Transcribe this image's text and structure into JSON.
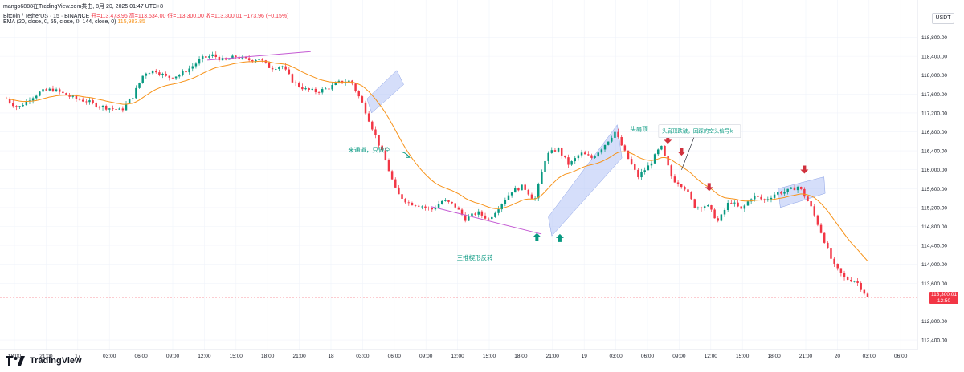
{
  "header": {
    "topline": "mango6888在TradingView.com共由, 8月 20, 2025 01:47 UTC+8",
    "symbol": "Bitcoin / TetherUS · 15 · BINANCE",
    "ohlc": "开=113,473.96  高=113,534.00  低=113,300.00  收=113,300.01  −173.96 (−0.15%)",
    "ema_label": "EMA (20, close, 0, 55, close, 0, 144, close, 0)",
    "ema_value": "115,983.85"
  },
  "currency_button": "USDT",
  "last_price": {
    "price": "113,300.01",
    "countdown": "12:50"
  },
  "brand": {
    "name": "TradingView"
  },
  "chart_data": {
    "type": "candlestick",
    "y_ticks": [
      "118,800.00",
      "118,400.00",
      "118,000.00",
      "117,600.00",
      "117,200.00",
      "116,800.00",
      "116,400.00",
      "116,000.00",
      "115,600.00",
      "115,200.00",
      "114,800.00",
      "114,400.00",
      "114,000.00",
      "113,600.00",
      "112,800.00",
      "112,400.00"
    ],
    "y_tick_values": [
      118800,
      118400,
      118000,
      117600,
      117200,
      116800,
      116400,
      116000,
      115600,
      115200,
      114800,
      114400,
      114000,
      113600,
      112800,
      112400
    ],
    "ylim": [
      112300,
      119080
    ],
    "x_ticks": [
      "18:00",
      "21:00",
      "17",
      "03:00",
      "06:00",
      "09:00",
      "12:00",
      "15:00",
      "18:00",
      "21:00",
      "18",
      "03:00",
      "06:00",
      "09:00",
      "12:00",
      "15:00",
      "18:00",
      "21:00",
      "19",
      "03:00",
      "06:00",
      "09:00",
      "12:00",
      "15:00",
      "18:00",
      "21:00",
      "20",
      "03:00",
      "06:00"
    ],
    "annotations": {
      "wedge_label": "三推楔形反转",
      "channel_label": "来通道，只做空",
      "hs_label": "头肩顶",
      "note_label": "头肩顶跌破，回踩的空头信号k"
    },
    "colors": {
      "up": "#089981",
      "down": "#f23645",
      "ema": "#f7931a",
      "wedge": "#c45ad3",
      "zone": "#b2c3f5",
      "marker_down": "#d0313d",
      "marker_up": "#089981"
    },
    "anchor_points": [
      [
        0,
        117500
      ],
      [
        1,
        117300
      ],
      [
        2,
        117500
      ],
      [
        3,
        117650
      ],
      [
        4,
        117700
      ],
      [
        5,
        117600
      ],
      [
        6,
        117500
      ],
      [
        7,
        117450
      ],
      [
        8,
        117350
      ],
      [
        9,
        117300
      ],
      [
        10,
        117250
      ],
      [
        11,
        117550
      ],
      [
        12,
        118050
      ],
      [
        13,
        118100
      ],
      [
        14,
        117950
      ],
      [
        15,
        118000
      ],
      [
        16,
        118150
      ],
      [
        17,
        118350
      ],
      [
        18,
        118420
      ],
      [
        19,
        118300
      ],
      [
        20,
        118400
      ],
      [
        21,
        118320
      ],
      [
        22,
        118350
      ],
      [
        23,
        118150
      ],
      [
        24,
        118200
      ],
      [
        25,
        117850
      ],
      [
        26,
        117700
      ],
      [
        27,
        117650
      ],
      [
        28,
        117720
      ],
      [
        29,
        117850
      ],
      [
        30,
        117880
      ],
      [
        31,
        117400
      ],
      [
        32,
        116800
      ],
      [
        33,
        116200
      ],
      [
        34,
        115500
      ],
      [
        35,
        115300
      ],
      [
        36,
        115250
      ],
      [
        37,
        115150
      ],
      [
        38,
        115350
      ],
      [
        39,
        115250
      ],
      [
        40,
        114950
      ],
      [
        41,
        115100
      ],
      [
        42,
        114950
      ],
      [
        43,
        115250
      ],
      [
        44,
        115550
      ],
      [
        45,
        115650
      ],
      [
        46,
        115350
      ],
      [
        47,
        116300
      ],
      [
        48,
        116450
      ],
      [
        49,
        116100
      ],
      [
        50,
        116350
      ],
      [
        51,
        116250
      ],
      [
        52,
        116500
      ],
      [
        53,
        116800
      ],
      [
        54,
        116300
      ],
      [
        55,
        115850
      ],
      [
        56,
        116100
      ],
      [
        57,
        116500
      ],
      [
        58,
        115800
      ],
      [
        59,
        115650
      ],
      [
        60,
        115200
      ],
      [
        61,
        115250
      ],
      [
        62,
        114900
      ],
      [
        63,
        115350
      ],
      [
        64,
        115150
      ],
      [
        65,
        115450
      ],
      [
        66,
        115350
      ],
      [
        67,
        115500
      ],
      [
        68,
        115550
      ],
      [
        69,
        115650
      ],
      [
        70,
        115250
      ],
      [
        71,
        114650
      ],
      [
        72,
        114000
      ],
      [
        73,
        113700
      ],
      [
        74,
        113650
      ],
      [
        75,
        113300
      ]
    ]
  }
}
